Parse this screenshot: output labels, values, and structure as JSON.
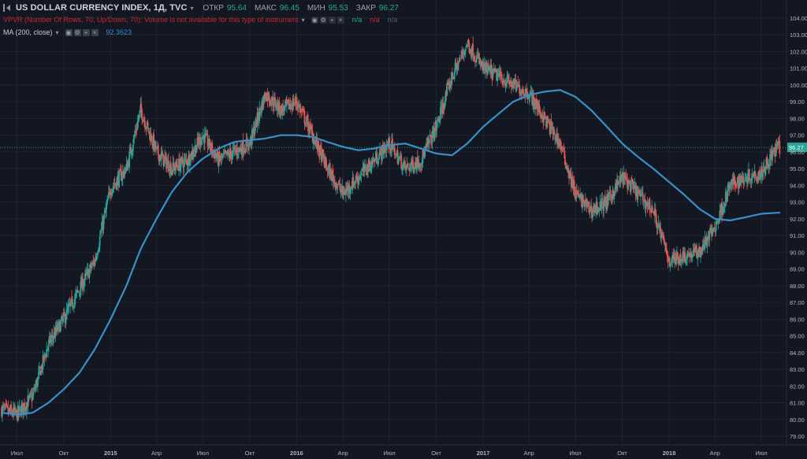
{
  "header": {
    "symbol_title": "US DOLLAR CURRENCY INDEX, 1Д, TVC",
    "open_label": "ОТКР",
    "open_value": "95.64",
    "high_label": "МАКС",
    "high_value": "96.45",
    "low_label": "МИН",
    "low_value": "95.53",
    "close_label": "ЗАКР",
    "close_value": "96.27",
    "vpvr_text": "VPVR (Number Of Rows, 70, Up/Down, 70): Volume is not available for this type of instrument",
    "vpvr_na1": "n/a",
    "vpvr_na2": "n/a",
    "vpvr_na3": "n/a",
    "ma_text": "MA (200, close)",
    "ma_value": "92.3623"
  },
  "colors": {
    "background": "#131722",
    "up": "#26a69a",
    "down": "#ef5350",
    "ma_line": "#3a8fc7",
    "price_line": "#26a69a"
  },
  "icons": [
    "collapse-icon",
    "dropdown-arrow-icon",
    "eye-icon",
    "settings-icon",
    "plus-icon",
    "close-icon"
  ],
  "chart_data": {
    "type": "candlestick",
    "y_ticks": [
      "104.00",
      "103.00",
      "102.00",
      "101.00",
      "100.00",
      "99.00",
      "98.00",
      "97.00",
      "96.00",
      "95.00",
      "94.00",
      "93.00",
      "92.00",
      "91.00",
      "90.00",
      "89.00",
      "88.00",
      "87.00",
      "86.00",
      "85.00",
      "84.00",
      "83.00",
      "82.00",
      "81.00",
      "80.00",
      "79.00"
    ],
    "ylim": [
      78.9,
      104.6
    ],
    "x_ticks": [
      "Июл",
      "Окт",
      "2015",
      "Апр",
      "Июл",
      "Окт",
      "2016",
      "Апр",
      "Июл",
      "Окт",
      "2017",
      "Апр",
      "Июл",
      "Окт",
      "2018",
      "Апр",
      "Июл"
    ],
    "current_price": "96.27",
    "series_price": {
      "x": [
        "2014-06-01",
        "2014-07-01",
        "2014-08-01",
        "2014-09-01",
        "2014-10-01",
        "2014-11-01",
        "2014-12-01",
        "2015-01-01",
        "2015-02-01",
        "2015-03-01",
        "2015-04-01",
        "2015-05-01",
        "2015-06-01",
        "2015-07-01",
        "2015-08-01",
        "2015-09-01",
        "2015-10-01",
        "2015-11-01",
        "2015-12-01",
        "2016-01-01",
        "2016-02-01",
        "2016-03-01",
        "2016-04-01",
        "2016-05-01",
        "2016-06-01",
        "2016-07-01",
        "2016-08-01",
        "2016-09-01",
        "2016-10-01",
        "2016-11-01",
        "2016-12-01",
        "2017-01-01",
        "2017-02-01",
        "2017-03-01",
        "2017-04-01",
        "2017-05-01",
        "2017-06-01",
        "2017-07-01",
        "2017-08-01",
        "2017-09-01",
        "2017-10-01",
        "2017-11-01",
        "2017-12-01",
        "2018-01-01",
        "2018-02-01",
        "2018-03-01",
        "2018-04-01",
        "2018-05-01",
        "2018-06-01",
        "2018-07-01",
        "2018-08-01"
      ],
      "y": [
        80.6,
        80.3,
        81.4,
        84.5,
        86.0,
        87.8,
        89.5,
        93.8,
        95.0,
        98.5,
        96.0,
        95.0,
        95.5,
        97.0,
        95.5,
        96.0,
        96.5,
        99.5,
        98.5,
        99.0,
        97.0,
        95.0,
        93.5,
        94.5,
        95.5,
        96.5,
        95.0,
        95.5,
        97.5,
        100.5,
        102.5,
        101.0,
        100.5,
        100.0,
        99.5,
        98.0,
        96.5,
        93.5,
        92.5,
        93.0,
        94.5,
        93.5,
        92.5,
        89.5,
        89.8,
        90.0,
        91.5,
        94.0,
        94.5,
        94.8,
        96.27
      ]
    },
    "series_ma": {
      "name": "MA (200, close)",
      "x": [
        "2014-06-01",
        "2014-07-01",
        "2014-08-01",
        "2014-09-01",
        "2014-10-01",
        "2014-11-01",
        "2014-12-01",
        "2015-01-01",
        "2015-02-01",
        "2015-03-01",
        "2015-04-01",
        "2015-05-01",
        "2015-06-01",
        "2015-07-01",
        "2015-08-01",
        "2015-09-01",
        "2015-10-01",
        "2015-11-01",
        "2015-12-01",
        "2016-01-01",
        "2016-02-01",
        "2016-03-01",
        "2016-04-01",
        "2016-05-01",
        "2016-06-01",
        "2016-07-01",
        "2016-08-01",
        "2016-09-01",
        "2016-10-01",
        "2016-11-01",
        "2016-12-01",
        "2017-01-01",
        "2017-02-01",
        "2017-03-01",
        "2017-04-01",
        "2017-05-01",
        "2017-06-01",
        "2017-07-01",
        "2017-08-01",
        "2017-09-01",
        "2017-10-01",
        "2017-11-01",
        "2017-12-01",
        "2018-01-01",
        "2018-02-01",
        "2018-03-01",
        "2018-04-01",
        "2018-05-01",
        "2018-06-01",
        "2018-07-01",
        "2018-08-01"
      ],
      "y": [
        80.4,
        80.3,
        80.4,
        81.0,
        81.8,
        82.8,
        84.2,
        86.0,
        88.0,
        90.2,
        92.0,
        93.6,
        94.8,
        95.6,
        96.2,
        96.6,
        96.7,
        96.8,
        97.0,
        97.0,
        96.9,
        96.6,
        96.3,
        96.1,
        96.2,
        96.4,
        96.5,
        96.2,
        95.9,
        95.8,
        96.5,
        97.5,
        98.3,
        99.0,
        99.4,
        99.6,
        99.7,
        99.3,
        98.5,
        97.5,
        96.5,
        95.7,
        95.0,
        94.2,
        93.4,
        92.6,
        92.0,
        91.9,
        92.1,
        92.3,
        92.36
      ]
    }
  }
}
